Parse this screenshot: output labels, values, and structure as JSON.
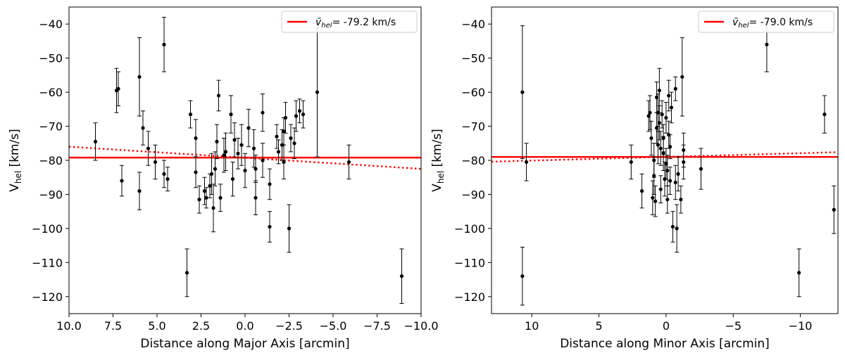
{
  "chart_data": [
    {
      "type": "scatter",
      "xlabel": "Distance along Major Axis [arcmin]",
      "ylabel": "V",
      "ylabel_sub": "hel",
      "ylabel_unit": " [km/s]",
      "xlim": [
        10.0,
        -10.0
      ],
      "ylim": [
        -125,
        -35
      ],
      "xticks": [
        10.0,
        7.5,
        5.0,
        2.5,
        0.0,
        -2.5,
        -5.0,
        -7.5,
        -10.0
      ],
      "xtick_labels": [
        "10.0",
        "7.5",
        "5.0",
        "2.5",
        "0.0",
        "−2.5",
        "−5.0",
        "−7.5",
        "−10.0"
      ],
      "yticks": [
        -40,
        -50,
        -60,
        -70,
        -80,
        -90,
        -100,
        -110,
        -120
      ],
      "ytick_labels": [
        "−40",
        "−50",
        "−60",
        "−70",
        "−80",
        "−90",
        "−100",
        "−110",
        "−120"
      ],
      "legend": {
        "symbol": "v̄",
        "sub": "hel",
        "value": "= -79.2 km/s",
        "placement": "top-right"
      },
      "mean_line": {
        "y": -79.2,
        "color": "#ff0000"
      },
      "fit_line": {
        "x": [
          10.0,
          -10.0
        ],
        "y": [
          -76.0,
          -82.5
        ],
        "color": "#ff0000",
        "style": "dotted"
      },
      "points": [
        {
          "x": 8.5,
          "y": -74.5,
          "err": 5.5
        },
        {
          "x": 7.3,
          "y": -59.5,
          "err": 6.5
        },
        {
          "x": 7.2,
          "y": -59.0,
          "err": 5.0
        },
        {
          "x": 7.0,
          "y": -86.0,
          "err": 4.5
        },
        {
          "x": 6.0,
          "y": -55.5,
          "err": 11.5
        },
        {
          "x": 6.0,
          "y": -89.0,
          "err": 5.5
        },
        {
          "x": 5.8,
          "y": -70.5,
          "err": 5.0
        },
        {
          "x": 5.5,
          "y": -76.5,
          "err": 5.0
        },
        {
          "x": 5.1,
          "y": -80.5,
          "err": 5.0
        },
        {
          "x": 4.6,
          "y": -46.0,
          "err": 8.0
        },
        {
          "x": 4.6,
          "y": -84.0,
          "err": 4.0
        },
        {
          "x": 4.4,
          "y": -85.5,
          "err": 3.5
        },
        {
          "x": 3.3,
          "y": -113.0,
          "err": 7.0
        },
        {
          "x": 3.1,
          "y": -66.5,
          "err": 4.0
        },
        {
          "x": 2.8,
          "y": -73.5,
          "err": 5.5
        },
        {
          "x": 2.8,
          "y": -83.5,
          "err": 4.5
        },
        {
          "x": 2.6,
          "y": -91.5,
          "err": 4.0
        },
        {
          "x": 2.3,
          "y": -89.0,
          "err": 4.0
        },
        {
          "x": 2.2,
          "y": -91.0,
          "err": 3.0
        },
        {
          "x": 2.0,
          "y": -87.5,
          "err": 3.5
        },
        {
          "x": 1.9,
          "y": -84.0,
          "err": 6.0
        },
        {
          "x": 1.8,
          "y": -94.0,
          "err": 7.0
        },
        {
          "x": 1.7,
          "y": -82.5,
          "err": 5.0
        },
        {
          "x": 1.6,
          "y": -74.5,
          "err": 5.0
        },
        {
          "x": 1.5,
          "y": -61.0,
          "err": 4.5
        },
        {
          "x": 1.4,
          "y": -91.0,
          "err": 4.0
        },
        {
          "x": 1.2,
          "y": -78.5,
          "err": 5.0
        },
        {
          "x": 1.1,
          "y": -77.5,
          "err": 5.5
        },
        {
          "x": 0.8,
          "y": -66.5,
          "err": 5.5
        },
        {
          "x": 0.7,
          "y": -85.5,
          "err": 5.0
        },
        {
          "x": 0.6,
          "y": -74.0,
          "err": 5.0
        },
        {
          "x": 0.4,
          "y": -78.0,
          "err": 4.5
        },
        {
          "x": 0.2,
          "y": -75.5,
          "err": 6.0
        },
        {
          "x": 0.0,
          "y": -83.0,
          "err": 5.0
        },
        {
          "x": -0.2,
          "y": -70.5,
          "err": 5.5
        },
        {
          "x": -0.5,
          "y": -76.5,
          "err": 5.5
        },
        {
          "x": -0.6,
          "y": -91.0,
          "err": 5.0
        },
        {
          "x": -0.6,
          "y": -82.5,
          "err": 4.0
        },
        {
          "x": -1.0,
          "y": -80.0,
          "err": 5.0
        },
        {
          "x": -1.0,
          "y": -66.0,
          "err": 5.5
        },
        {
          "x": -1.4,
          "y": -99.5,
          "err": 4.5
        },
        {
          "x": -1.4,
          "y": -87.0,
          "err": 4.5
        },
        {
          "x": -1.8,
          "y": -73.0,
          "err": 3.5
        },
        {
          "x": -1.9,
          "y": -77.5,
          "err": 3.5
        },
        {
          "x": -2.1,
          "y": -75.5,
          "err": 4.5
        },
        {
          "x": -2.2,
          "y": -80.5,
          "err": 5.0
        },
        {
          "x": -2.2,
          "y": -71.5,
          "err": 4.0
        },
        {
          "x": -2.3,
          "y": -67.5,
          "err": 4.5
        },
        {
          "x": -2.5,
          "y": -100.0,
          "err": 7.0
        },
        {
          "x": -2.6,
          "y": -73.5,
          "err": 4.0
        },
        {
          "x": -2.8,
          "y": -75.0,
          "err": 4.5
        },
        {
          "x": -2.9,
          "y": -67.0,
          "err": 4.5
        },
        {
          "x": -3.1,
          "y": -65.5,
          "err": 3.5
        },
        {
          "x": -3.3,
          "y": -66.5,
          "err": 4.0
        },
        {
          "x": -4.1,
          "y": -60.0,
          "err": 19.0
        },
        {
          "x": -5.9,
          "y": -80.5,
          "err": 5.0
        },
        {
          "x": -8.9,
          "y": -114.0,
          "err": 8.0
        }
      ]
    },
    {
      "type": "scatter",
      "xlabel": "Distance along Minor Axis [arcmin]",
      "ylabel": "V",
      "ylabel_sub": "hel",
      "ylabel_unit": " [km/s]",
      "xlim": [
        13.0,
        -12.8
      ],
      "ylim": [
        -125,
        -35
      ],
      "xticks": [
        10,
        5,
        0,
        -5,
        -10
      ],
      "xtick_labels": [
        "10",
        "5",
        "0",
        "−5",
        "−10"
      ],
      "yticks": [
        -40,
        -50,
        -60,
        -70,
        -80,
        -90,
        -100,
        -110,
        -120
      ],
      "ytick_labels": [
        "−40",
        "−50",
        "−60",
        "−70",
        "−80",
        "−90",
        "−100",
        "−110",
        "−120"
      ],
      "legend": {
        "symbol": "v̄",
        "sub": "hel",
        "value": "= -79.0 km/s",
        "placement": "top-right"
      },
      "mean_line": {
        "y": -79.0,
        "color": "#ff0000"
      },
      "fit_line": {
        "x": [
          13.0,
          -12.8
        ],
        "y": [
          -80.4,
          -77.6
        ],
        "color": "#ff0000",
        "style": "dotted"
      },
      "points": [
        {
          "x": 10.7,
          "y": -60.0,
          "err": 19.5
        },
        {
          "x": 10.7,
          "y": -114.0,
          "err": 8.5
        },
        {
          "x": 10.4,
          "y": -80.5,
          "err": 5.5
        },
        {
          "x": 2.6,
          "y": -80.5,
          "err": 5.0
        },
        {
          "x": 1.8,
          "y": -89.0,
          "err": 5.0
        },
        {
          "x": 1.3,
          "y": -67.0,
          "err": 4.5
        },
        {
          "x": 1.2,
          "y": -66.0,
          "err": 5.0
        },
        {
          "x": 1.1,
          "y": -73.5,
          "err": 5.0
        },
        {
          "x": 1.0,
          "y": -91.0,
          "err": 5.0
        },
        {
          "x": 0.9,
          "y": -80.0,
          "err": 5.0
        },
        {
          "x": 0.9,
          "y": -84.5,
          "err": 5.5
        },
        {
          "x": 0.8,
          "y": -92.0,
          "err": 4.5
        },
        {
          "x": 0.7,
          "y": -61.5,
          "err": 4.5
        },
        {
          "x": 0.7,
          "y": -70.5,
          "err": 4.5
        },
        {
          "x": 0.6,
          "y": -66.0,
          "err": 5.5
        },
        {
          "x": 0.6,
          "y": -75.5,
          "err": 5.5
        },
        {
          "x": 0.5,
          "y": -59.5,
          "err": 6.5
        },
        {
          "x": 0.5,
          "y": -69.0,
          "err": 5.0
        },
        {
          "x": 0.4,
          "y": -76.5,
          "err": 5.0
        },
        {
          "x": 0.4,
          "y": -88.5,
          "err": 4.0
        },
        {
          "x": 0.3,
          "y": -66.5,
          "err": 4.0
        },
        {
          "x": 0.2,
          "y": -73.5,
          "err": 4.0
        },
        {
          "x": 0.2,
          "y": -78.0,
          "err": 5.0
        },
        {
          "x": 0.1,
          "y": -85.5,
          "err": 5.0
        },
        {
          "x": 0.0,
          "y": -81.0,
          "err": 4.5
        },
        {
          "x": 0.0,
          "y": -67.5,
          "err": 4.5
        },
        {
          "x": -0.1,
          "y": -83.0,
          "err": 4.5
        },
        {
          "x": -0.1,
          "y": -91.5,
          "err": 4.0
        },
        {
          "x": -0.2,
          "y": -61.0,
          "err": 4.5
        },
        {
          "x": -0.2,
          "y": -72.5,
          "err": 4.0
        },
        {
          "x": -0.3,
          "y": -86.0,
          "err": 4.0
        },
        {
          "x": -0.3,
          "y": -76.0,
          "err": 3.5
        },
        {
          "x": -0.4,
          "y": -64.5,
          "err": 4.5
        },
        {
          "x": -0.5,
          "y": -99.5,
          "err": 4.5
        },
        {
          "x": -0.7,
          "y": -86.5,
          "err": 5.0
        },
        {
          "x": -0.7,
          "y": -59.0,
          "err": 3.5
        },
        {
          "x": -0.8,
          "y": -100.0,
          "err": 7.0
        },
        {
          "x": -0.9,
          "y": -84.0,
          "err": 5.0
        },
        {
          "x": -1.1,
          "y": -91.5,
          "err": 4.0
        },
        {
          "x": -1.2,
          "y": -55.5,
          "err": 11.5
        },
        {
          "x": -1.3,
          "y": -77.0,
          "err": 5.0
        },
        {
          "x": -1.3,
          "y": -80.5,
          "err": 5.0
        },
        {
          "x": -2.6,
          "y": -82.5,
          "err": 6.0
        },
        {
          "x": -7.5,
          "y": -46.0,
          "err": 8.0
        },
        {
          "x": -9.9,
          "y": -113.0,
          "err": 7.0
        },
        {
          "x": -11.8,
          "y": -66.5,
          "err": 5.5
        },
        {
          "x": -12.5,
          "y": -94.5,
          "err": 7.0
        }
      ]
    }
  ]
}
